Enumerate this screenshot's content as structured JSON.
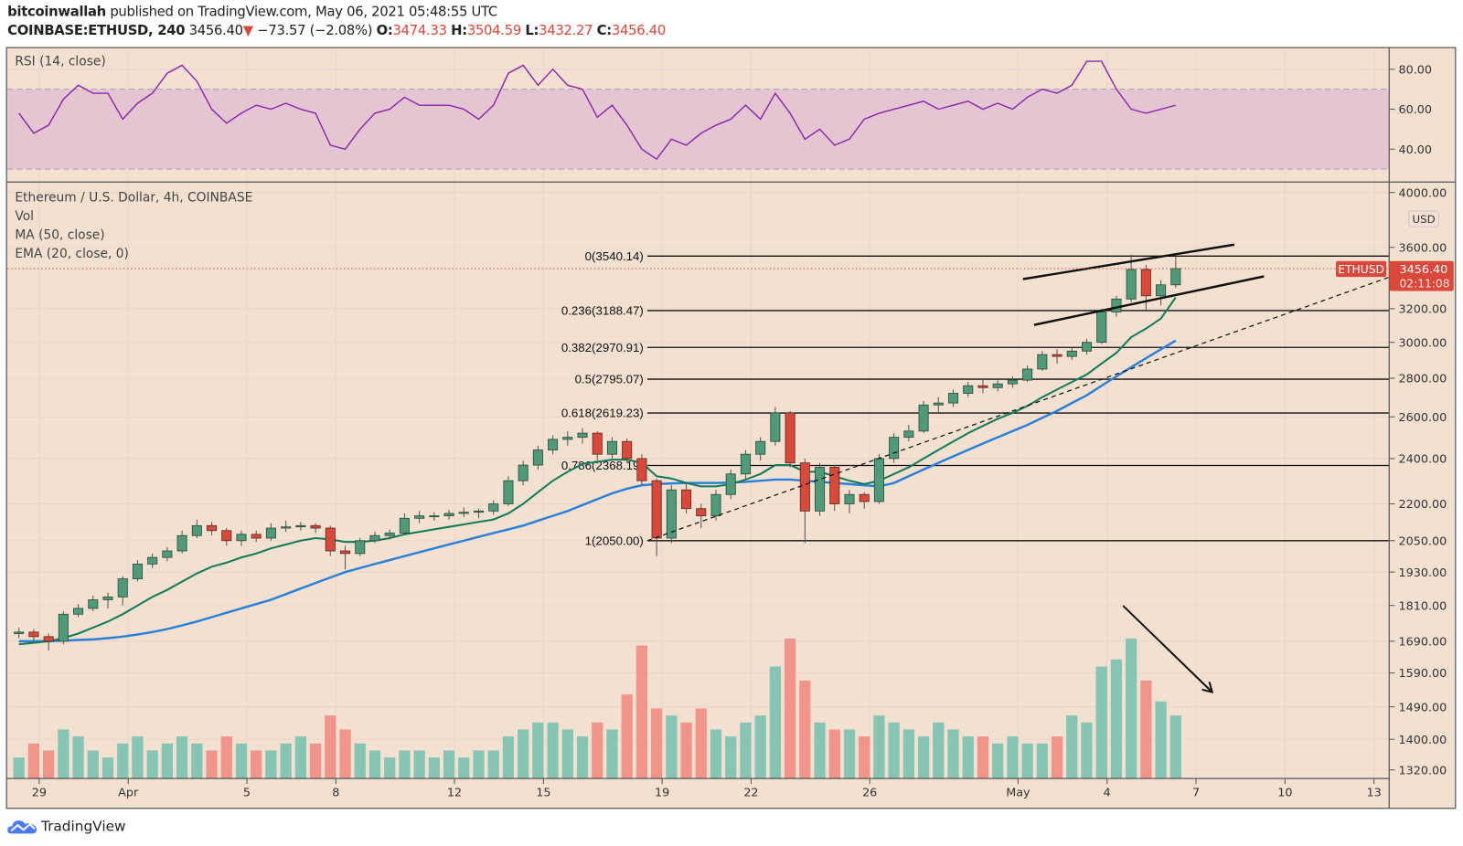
{
  "header": {
    "author": "bitcoinwallah",
    "published": "published on TradingView.com, May 06, 2021 05:48:55 UTC",
    "symbol": "COINBASE:ETHUSD, 240",
    "last": "3456.40",
    "change": "−73.57 (−2.08%)",
    "o_label": "O:",
    "o": "3474.33",
    "h_label": "H:",
    "h": "3504.59",
    "l_label": "L:",
    "l": "3432.27",
    "c_label": "C:",
    "c": "3456.40"
  },
  "rsi_pane": {
    "title": "RSI (14, close)",
    "ticks": [
      "80.00",
      "60.00",
      "40.00"
    ],
    "tick_values": [
      80,
      60,
      40
    ],
    "band": [
      30,
      70
    ]
  },
  "main_pane": {
    "legend": [
      "Ethereum / U.S. Dollar, 4h, COINBASE",
      "Vol",
      "MA (50, close)",
      "EMA (20, close, 0)"
    ],
    "currency": "USD",
    "price_ticks": [
      "4000.00",
      "3600.00",
      "3200.00",
      "3000.00",
      "2800.00",
      "2600.00",
      "2400.00",
      "2200.00",
      "2050.00",
      "1930.00",
      "1810.00",
      "1690.00",
      "1590.00",
      "1490.00",
      "1400.00",
      "1320.00"
    ],
    "last_price_symbol": "ETHUSD",
    "last_price": "3456.40",
    "countdown": "02:11:08",
    "time_ticks": [
      {
        "label": "29",
        "date": "2021-03-29"
      },
      {
        "label": "Apr",
        "date": "2021-04-01"
      },
      {
        "label": "5",
        "date": "2021-04-05"
      },
      {
        "label": "8",
        "date": "2021-04-08"
      },
      {
        "label": "12",
        "date": "2021-04-12"
      },
      {
        "label": "15",
        "date": "2021-04-15"
      },
      {
        "label": "19",
        "date": "2021-04-19"
      },
      {
        "label": "22",
        "date": "2021-04-22"
      },
      {
        "label": "26",
        "date": "2021-04-26"
      },
      {
        "label": "May",
        "date": "2021-05-01"
      },
      {
        "label": "4",
        "date": "2021-05-04"
      },
      {
        "label": "7",
        "date": "2021-05-07"
      },
      {
        "label": "10",
        "date": "2021-05-10"
      },
      {
        "label": "13",
        "date": "2021-05-13"
      }
    ]
  },
  "fib": {
    "start": "2021-04-18T12:00",
    "levels": [
      {
        "label": "0(3540.14)",
        "price": 3540.14
      },
      {
        "label": "0.236(3188.47)",
        "price": 3188.47
      },
      {
        "label": "0.382(2970.91)",
        "price": 2970.91
      },
      {
        "label": "0.5(2795.07)",
        "price": 2795.07
      },
      {
        "label": "0.618(2619.23)",
        "price": 2619.23
      },
      {
        "label": "0.786(2368.19)",
        "price": 2368.19
      },
      {
        "label": "1(2050.00)",
        "price": 2050.0
      }
    ]
  },
  "drawings": {
    "channel_upper": [
      [
        "2021-05-01T04:00",
        3387
      ],
      [
        "2021-05-08T07:00",
        3619
      ]
    ],
    "channel_lower": [
      [
        "2021-05-01T13:00",
        3102
      ],
      [
        "2021-05-09T07:00",
        3405
      ]
    ],
    "trendline_dashed": [
      [
        "2021-04-18T12:00",
        2050
      ],
      [
        "2021-05-13T12:00",
        3399
      ]
    ],
    "arrow": [
      [
        "2021-05-04T13:00",
        1809
      ],
      [
        "2021-05-07T13:00",
        1533
      ]
    ]
  },
  "colors": {
    "background": "#f2e1d1",
    "up": "#4f9a78",
    "down": "#d9483b",
    "vol_up": "#86c4b4",
    "vol_down": "#f1958a",
    "ema": "#127a5a",
    "ma": "#2a7fd9",
    "rsi": "#8e24aa",
    "last_price": "#d9483b"
  },
  "chart_data": {
    "type": "candlestick",
    "scale": "log",
    "ylim": [
      1320,
      4000
    ],
    "candle_start": "2021-03-28T00:00",
    "candle_interval_hours": 12,
    "candles": [
      [
        1715,
        1735,
        1700,
        1720
      ],
      [
        1720,
        1730,
        1690,
        1705
      ],
      [
        1705,
        1715,
        1660,
        1690
      ],
      [
        1690,
        1790,
        1680,
        1780
      ],
      [
        1780,
        1815,
        1770,
        1800
      ],
      [
        1800,
        1845,
        1790,
        1830
      ],
      [
        1830,
        1855,
        1800,
        1840
      ],
      [
        1840,
        1915,
        1810,
        1905
      ],
      [
        1905,
        1975,
        1895,
        1960
      ],
      [
        1960,
        2000,
        1945,
        1985
      ],
      [
        1985,
        2025,
        1970,
        2010
      ],
      [
        2010,
        2090,
        2000,
        2070
      ],
      [
        2070,
        2135,
        2060,
        2110
      ],
      [
        2110,
        2125,
        2070,
        2090
      ],
      [
        2090,
        2100,
        2030,
        2050
      ],
      [
        2050,
        2090,
        2030,
        2075
      ],
      [
        2075,
        2090,
        2045,
        2060
      ],
      [
        2060,
        2120,
        2050,
        2100
      ],
      [
        2100,
        2130,
        2085,
        2105
      ],
      [
        2105,
        2125,
        2090,
        2110
      ],
      [
        2110,
        2120,
        2080,
        2100
      ],
      [
        2100,
        2110,
        1990,
        2010
      ],
      [
        2010,
        2030,
        1940,
        2000
      ],
      [
        2000,
        2060,
        1990,
        2050
      ],
      [
        2050,
        2085,
        2040,
        2070
      ],
      [
        2070,
        2095,
        2055,
        2080
      ],
      [
        2080,
        2160,
        2075,
        2140
      ],
      [
        2140,
        2170,
        2120,
        2150
      ],
      [
        2150,
        2165,
        2130,
        2150
      ],
      [
        2150,
        2175,
        2135,
        2160
      ],
      [
        2160,
        2185,
        2145,
        2165
      ],
      [
        2165,
        2180,
        2140,
        2170
      ],
      [
        2170,
        2215,
        2155,
        2200
      ],
      [
        2200,
        2320,
        2190,
        2300
      ],
      [
        2300,
        2390,
        2280,
        2370
      ],
      [
        2370,
        2460,
        2350,
        2440
      ],
      [
        2440,
        2510,
        2420,
        2490
      ],
      [
        2490,
        2530,
        2460,
        2500
      ],
      [
        2500,
        2545,
        2470,
        2520
      ],
      [
        2520,
        2530,
        2390,
        2420
      ],
      [
        2420,
        2500,
        2400,
        2480
      ],
      [
        2480,
        2495,
        2380,
        2400
      ],
      [
        2400,
        2420,
        2280,
        2300
      ],
      [
        2300,
        2310,
        1990,
        2060
      ],
      [
        2060,
        2280,
        2040,
        2260
      ],
      [
        2260,
        2290,
        2160,
        2180
      ],
      [
        2180,
        2200,
        2100,
        2150
      ],
      [
        2150,
        2260,
        2130,
        2240
      ],
      [
        2240,
        2350,
        2220,
        2330
      ],
      [
        2330,
        2440,
        2310,
        2420
      ],
      [
        2420,
        2500,
        2390,
        2480
      ],
      [
        2480,
        2650,
        2460,
        2620
      ],
      [
        2620,
        2630,
        2360,
        2380
      ],
      [
        2380,
        2400,
        2040,
        2170
      ],
      [
        2170,
        2380,
        2150,
        2360
      ],
      [
        2360,
        2370,
        2170,
        2200
      ],
      [
        2200,
        2260,
        2160,
        2240
      ],
      [
        2240,
        2250,
        2180,
        2210
      ],
      [
        2210,
        2420,
        2200,
        2400
      ],
      [
        2400,
        2520,
        2380,
        2500
      ],
      [
        2500,
        2560,
        2480,
        2530
      ],
      [
        2530,
        2680,
        2520,
        2660
      ],
      [
        2660,
        2700,
        2620,
        2670
      ],
      [
        2670,
        2740,
        2650,
        2720
      ],
      [
        2720,
        2780,
        2700,
        2760
      ],
      [
        2760,
        2790,
        2720,
        2750
      ],
      [
        2750,
        2790,
        2730,
        2770
      ],
      [
        2770,
        2810,
        2750,
        2790
      ],
      [
        2790,
        2870,
        2780,
        2850
      ],
      [
        2850,
        2950,
        2840,
        2930
      ],
      [
        2930,
        2960,
        2880,
        2920
      ],
      [
        2920,
        2970,
        2900,
        2950
      ],
      [
        2950,
        3020,
        2930,
        3000
      ],
      [
        3000,
        3200,
        2990,
        3180
      ],
      [
        3180,
        3280,
        3150,
        3260
      ],
      [
        3260,
        3550,
        3240,
        3450
      ],
      [
        3450,
        3480,
        3190,
        3280
      ],
      [
        3280,
        3380,
        3220,
        3350
      ],
      [
        3350,
        3540,
        3330,
        3456.4
      ]
    ],
    "ema20": [
      1680,
      1685,
      1690,
      1700,
      1715,
      1735,
      1755,
      1780,
      1810,
      1840,
      1865,
      1895,
      1925,
      1950,
      1965,
      1985,
      2000,
      2020,
      2035,
      2050,
      2060,
      2055,
      2045,
      2045,
      2050,
      2060,
      2075,
      2085,
      2095,
      2105,
      2115,
      2125,
      2135,
      2160,
      2200,
      2250,
      2300,
      2340,
      2375,
      2385,
      2395,
      2395,
      2380,
      2320,
      2310,
      2290,
      2275,
      2275,
      2285,
      2305,
      2330,
      2370,
      2370,
      2340,
      2340,
      2320,
      2300,
      2285,
      2300,
      2330,
      2360,
      2400,
      2440,
      2480,
      2520,
      2555,
      2590,
      2620,
      2655,
      2700,
      2740,
      2780,
      2820,
      2880,
      2940,
      3030,
      3080,
      3140,
      3270
    ],
    "ma50": [
      1690,
      1690,
      1690,
      1692,
      1694,
      1696,
      1700,
      1705,
      1712,
      1720,
      1730,
      1742,
      1755,
      1770,
      1785,
      1800,
      1815,
      1830,
      1850,
      1870,
      1890,
      1910,
      1930,
      1945,
      1960,
      1975,
      1990,
      2005,
      2020,
      2035,
      2050,
      2065,
      2080,
      2095,
      2110,
      2130,
      2150,
      2170,
      2195,
      2220,
      2245,
      2265,
      2280,
      2285,
      2288,
      2290,
      2290,
      2290,
      2292,
      2295,
      2300,
      2305,
      2305,
      2300,
      2295,
      2290,
      2285,
      2280,
      2275,
      2290,
      2320,
      2350,
      2380,
      2410,
      2440,
      2470,
      2500,
      2530,
      2560,
      2595,
      2630,
      2670,
      2710,
      2760,
      2810,
      2860,
      2910,
      2960,
      3010
    ],
    "volume_relative": [
      15,
      25,
      20,
      35,
      30,
      20,
      15,
      25,
      30,
      20,
      25,
      30,
      25,
      20,
      30,
      25,
      20,
      20,
      25,
      30,
      25,
      45,
      35,
      25,
      20,
      15,
      20,
      20,
      15,
      20,
      15,
      20,
      20,
      30,
      35,
      40,
      40,
      35,
      30,
      40,
      35,
      60,
      95,
      50,
      45,
      40,
      50,
      35,
      30,
      40,
      45,
      80,
      100,
      70,
      40,
      35,
      35,
      30,
      45,
      40,
      35,
      30,
      40,
      35,
      30,
      30,
      25,
      30,
      25,
      25,
      30,
      45,
      40,
      80,
      85,
      100,
      70,
      55,
      45
    ],
    "rsi": [
      58,
      48,
      52,
      65,
      72,
      68,
      68,
      55,
      63,
      68,
      78,
      82,
      74,
      60,
      53,
      58,
      62,
      60,
      63,
      60,
      58,
      42,
      40,
      50,
      58,
      60,
      66,
      62,
      62,
      62,
      60,
      55,
      62,
      78,
      82,
      72,
      80,
      72,
      70,
      56,
      62,
      52,
      40,
      35,
      45,
      42,
      48,
      52,
      55,
      62,
      55,
      68,
      58,
      45,
      50,
      42,
      45,
      55,
      58,
      60,
      62,
      64,
      60,
      62,
      64,
      60,
      63,
      60,
      66,
      70,
      68,
      72,
      84,
      84,
      70,
      60,
      58,
      60,
      62
    ]
  },
  "footer": {
    "brand": "TradingView"
  }
}
